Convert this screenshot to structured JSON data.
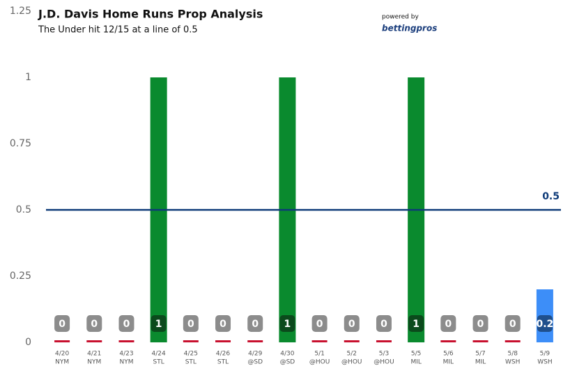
{
  "chart_data": {
    "type": "bar",
    "title": "J.D. Davis Home Runs Prop Analysis",
    "subtitle": "The Under hit 12/15 at a line of 0.5",
    "brand_prefix": "powered by",
    "brand": "bettingpros",
    "categories": [
      "4/20",
      "4/21",
      "4/23",
      "4/24",
      "4/25",
      "4/26",
      "4/29",
      "4/30",
      "5/1",
      "5/2",
      "5/3",
      "5/5",
      "5/6",
      "5/7",
      "5/8",
      "5/9"
    ],
    "opponents": [
      "NYM",
      "NYM",
      "NYM",
      "STL",
      "STL",
      "STL",
      "@SD",
      "@SD",
      "@HOU",
      "@HOU",
      "@HOU",
      "MIL",
      "MIL",
      "MIL",
      "WSH",
      "WSH"
    ],
    "values": [
      0,
      0,
      0,
      1,
      0,
      0,
      0,
      1,
      0,
      0,
      0,
      1,
      0,
      0,
      0,
      0.2
    ],
    "colors": [
      "#c8102e",
      "#c8102e",
      "#c8102e",
      "#0a8a2e",
      "#c8102e",
      "#c8102e",
      "#c8102e",
      "#0a8a2e",
      "#c8102e",
      "#c8102e",
      "#c8102e",
      "#0a8a2e",
      "#c8102e",
      "#c8102e",
      "#c8102e",
      "#3d8ef8"
    ],
    "label_colors": [
      "#8c8c8c",
      "#8c8c8c",
      "#8c8c8c",
      "#0b4a1c",
      "#8c8c8c",
      "#8c8c8c",
      "#8c8c8c",
      "#0b4a1c",
      "#8c8c8c",
      "#8c8c8c",
      "#8c8c8c",
      "#0b4a1c",
      "#8c8c8c",
      "#8c8c8c",
      "#8c8c8c",
      "#1f4f8c"
    ],
    "prop_line": 0.5,
    "prop_line_color": "#0d3a78",
    "ylim": [
      0,
      1.25
    ],
    "yticks": [
      0,
      0.25,
      0.5,
      0.75,
      1,
      1.25
    ]
  }
}
